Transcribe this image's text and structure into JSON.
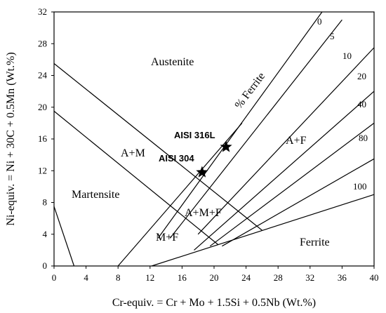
{
  "chart_data": {
    "type": "line",
    "xlabel": "Cr-equiv. = Cr + Mo + 1.5Si + 0.5Nb (Wt.%)",
    "ylabel": "Ni-equiv. = Ni + 30C + 0.5Mn (Wt.%)",
    "xlim": [
      0,
      40
    ],
    "ylim": [
      0,
      32
    ],
    "x_ticks": [
      "0",
      "4",
      "8",
      "12",
      "16",
      "20",
      "24",
      "28",
      "32",
      "36",
      "40"
    ],
    "y_ticks": [
      "0",
      "4",
      "8",
      "12",
      "16",
      "20",
      "24",
      "28",
      "32"
    ],
    "grid": false,
    "phase_boundaries": [
      {
        "name": "austenite-martensite",
        "points": [
          [
            0,
            25.5
          ],
          [
            26,
            4.5
          ]
        ]
      },
      {
        "name": "martensite-lower",
        "points": [
          [
            0,
            19.5
          ],
          [
            20.5,
            2.7
          ]
        ]
      },
      {
        "name": "martensite-left",
        "points": [
          [
            0,
            7.5
          ],
          [
            2.5,
            0
          ]
        ]
      },
      {
        "name": "lower-cr-limit",
        "points": [
          [
            8,
            0
          ],
          [
            23.5,
            18
          ]
        ]
      },
      {
        "name": "ferrite-bottom",
        "points": [
          [
            12.2,
            0
          ],
          [
            40,
            9
          ]
        ]
      }
    ],
    "ferrite_isolines": [
      {
        "name": "0",
        "points": [
          [
            13,
            3.5
          ],
          [
            33.5,
            32
          ]
        ]
      },
      {
        "name": "5",
        "points": [
          [
            14.5,
            3.5
          ],
          [
            36,
            31
          ]
        ]
      },
      {
        "name": "10",
        "points": [
          [
            18,
            4
          ],
          [
            40,
            27.5
          ]
        ]
      },
      {
        "name": "20",
        "points": [
          [
            17.5,
            2
          ],
          [
            40,
            22
          ]
        ]
      },
      {
        "name": "40",
        "points": [
          [
            19.5,
            2.5
          ],
          [
            40,
            18
          ]
        ]
      },
      {
        "name": "80",
        "points": [
          [
            21,
            2.5
          ],
          [
            40,
            13.5
          ]
        ]
      }
    ],
    "isoline_labels": [
      "0",
      "5",
      "10",
      "20",
      "40",
      "80",
      "100"
    ],
    "regions": [
      "Austenite",
      "Martensite",
      "A+M",
      "A+M+F",
      "M+F",
      "A+F",
      "Ferrite"
    ],
    "rotated_label": "% Ferrite",
    "points": [
      {
        "name": "AISI 316L",
        "x": 21.5,
        "y": 15
      },
      {
        "name": "AISI 304",
        "x": 18.5,
        "y": 11.8
      }
    ]
  }
}
